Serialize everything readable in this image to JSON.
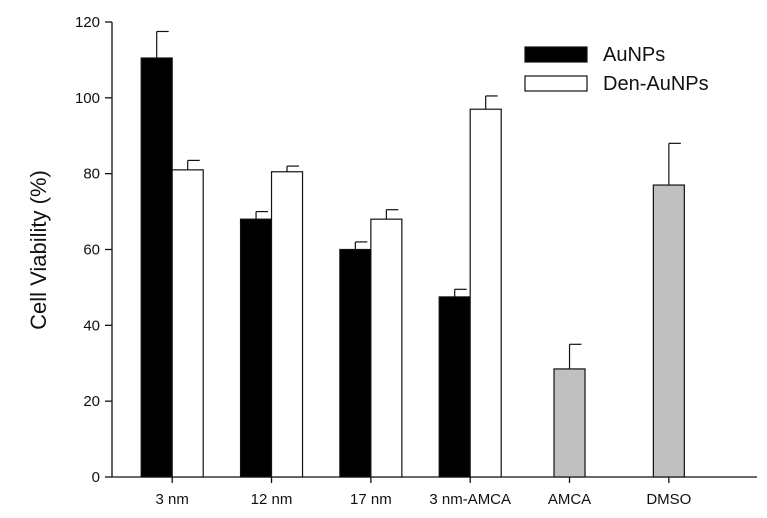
{
  "chart_data": {
    "type": "bar",
    "title": "",
    "xlabel": "",
    "ylabel": "Cell Viability (%)",
    "ylim": [
      0,
      120
    ],
    "yticks": [
      0,
      20,
      40,
      60,
      80,
      100,
      120
    ],
    "categories": [
      "3 nm",
      "12 nm",
      "17 nm",
      "3 nm-AMCA",
      "AMCA",
      "DMSO"
    ],
    "series": [
      {
        "name": "AuNPs",
        "color": "#000000",
        "values": [
          110.5,
          68,
          60,
          47.5,
          null,
          null
        ],
        "errors": [
          7,
          2,
          2,
          2,
          null,
          null
        ]
      },
      {
        "name": "Den-AuNPs",
        "color": "#ffffff",
        "values": [
          81,
          80.5,
          68,
          97,
          null,
          null
        ],
        "errors": [
          2.5,
          1.5,
          2.5,
          3.5,
          null,
          null
        ]
      },
      {
        "name": "",
        "color": "#c0c0c0",
        "values": [
          null,
          null,
          null,
          null,
          28.5,
          77
        ],
        "errors": [
          null,
          null,
          null,
          null,
          6.5,
          11
        ]
      }
    ],
    "legend": {
      "placement": "top-right",
      "entries": [
        "AuNPs",
        "Den-AuNPs"
      ]
    },
    "grid": false
  }
}
